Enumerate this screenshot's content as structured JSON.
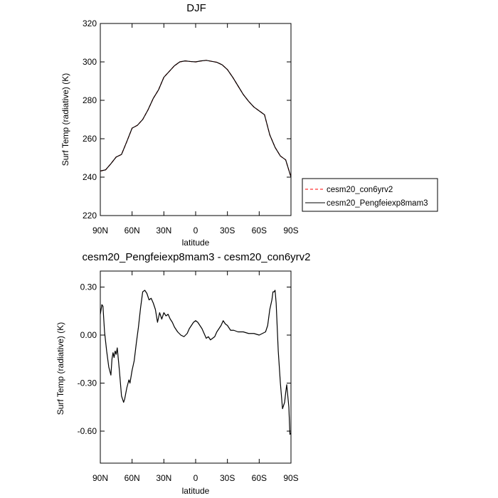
{
  "chart_data": [
    {
      "type": "line",
      "title": "DJF",
      "xlabel": "latitude",
      "ylabel": "Surf Temp (radiative) (K)",
      "x_ticks": [
        {
          "value": 90,
          "label": "90N"
        },
        {
          "value": 60,
          "label": "60N"
        },
        {
          "value": 30,
          "label": "30N"
        },
        {
          "value": 0,
          "label": "0"
        },
        {
          "value": -30,
          "label": "30S"
        },
        {
          "value": -60,
          "label": "60S"
        },
        {
          "value": -90,
          "label": "90S"
        }
      ],
      "xlim": [
        90,
        -90
      ],
      "ylim": [
        220,
        320
      ],
      "y_ticks": [
        220,
        240,
        260,
        280,
        300,
        320
      ],
      "y_tick_labels": [
        "220",
        "240",
        "260",
        "280",
        "300",
        "320"
      ],
      "legend": {
        "placement": "right",
        "entries": [
          {
            "name": "cesm20_con6yrv2",
            "style": "dashed",
            "color": "#ff0000"
          },
          {
            "name": "cesm20_Pengfeiexp8mam3",
            "style": "solid",
            "color": "#000000"
          }
        ]
      },
      "x": [
        90,
        85,
        80,
        75,
        70,
        65,
        60,
        55,
        50,
        45,
        40,
        35,
        30,
        25,
        20,
        15,
        10,
        5,
        0,
        -5,
        -10,
        -15,
        -20,
        -25,
        -30,
        -35,
        -40,
        -45,
        -50,
        -55,
        -60,
        -65,
        -70,
        -75,
        -80,
        -85,
        -90
      ],
      "series": [
        {
          "name": "cesm20_con6yrv2",
          "color": "#ff0000",
          "style": "dashed",
          "values": [
            243.2,
            243.8,
            247.0,
            250.5,
            251.8,
            258.5,
            265.5,
            267.0,
            270.0,
            275.0,
            281.0,
            285.5,
            292.0,
            295.0,
            298.0,
            300.0,
            300.5,
            300.2,
            300.0,
            300.5,
            300.8,
            300.3,
            299.8,
            298.5,
            296.0,
            292.0,
            287.5,
            283.0,
            279.5,
            276.5,
            274.5,
            272.5,
            262.0,
            255.5,
            251.0,
            249.0,
            240.0
          ]
        },
        {
          "name": "cesm20_Pengfeiexp8mam3",
          "color": "#000000",
          "style": "solid",
          "values": [
            243.2,
            243.8,
            247.0,
            250.5,
            251.8,
            258.5,
            265.5,
            267.0,
            270.0,
            275.0,
            281.0,
            285.5,
            292.0,
            295.0,
            298.0,
            300.0,
            300.5,
            300.2,
            300.0,
            300.5,
            300.8,
            300.3,
            299.8,
            298.5,
            296.0,
            292.0,
            287.5,
            283.0,
            279.5,
            276.5,
            274.5,
            272.5,
            262.0,
            255.5,
            251.0,
            249.0,
            240.0
          ]
        }
      ]
    },
    {
      "type": "line",
      "title": "cesm20_Pengfeiexp8mam3 - cesm20_con6yrv2",
      "xlabel": "latitude",
      "ylabel": "Surf Temp (radiative) (K)",
      "x_ticks": [
        {
          "value": 90,
          "label": "90N"
        },
        {
          "value": 60,
          "label": "60N"
        },
        {
          "value": 30,
          "label": "30N"
        },
        {
          "value": 0,
          "label": "0"
        },
        {
          "value": -30,
          "label": "30S"
        },
        {
          "value": -60,
          "label": "60S"
        },
        {
          "value": -90,
          "label": "90S"
        }
      ],
      "xlim": [
        90,
        -90
      ],
      "ylim": [
        -0.8,
        0.4
      ],
      "y_ticks": [
        0.3,
        0.0,
        -0.3,
        -0.6
      ],
      "y_tick_labels": [
        "0.30",
        "0.00",
        "-0.30",
        "-0.60"
      ],
      "x": [
        90,
        88.5,
        87.5,
        86,
        84,
        82,
        80,
        79,
        78,
        77,
        76,
        75,
        74,
        72,
        70,
        68,
        67,
        65,
        63,
        62,
        60,
        58,
        56,
        54,
        52,
        50,
        48,
        46,
        44,
        42,
        40,
        38,
        36,
        34,
        32,
        30,
        28,
        26,
        24,
        22,
        20,
        17,
        14,
        11,
        8,
        6,
        4,
        2,
        0,
        -2,
        -4,
        -6,
        -8,
        -10,
        -12,
        -14,
        -16,
        -18,
        -20,
        -22,
        -24,
        -26,
        -28,
        -30,
        -33,
        -36,
        -40,
        -45,
        -50,
        -55,
        -60,
        -63,
        -66,
        -68,
        -70,
        -72,
        -73,
        -74,
        -75,
        -76,
        -77,
        -78,
        -80,
        -82,
        -84,
        -85,
        -86,
        -88,
        -89,
        -90
      ],
      "series": [
        {
          "name": "cesm20_Pengfeiexp8mam3 - cesm20_con6yrv2",
          "color": "#000000",
          "style": "solid",
          "values": [
            0.13,
            0.19,
            0.18,
            0.02,
            -0.1,
            -0.2,
            -0.25,
            -0.15,
            -0.11,
            -0.14,
            -0.1,
            -0.12,
            -0.08,
            -0.22,
            -0.38,
            -0.42,
            -0.4,
            -0.33,
            -0.28,
            -0.3,
            -0.22,
            -0.16,
            -0.05,
            0.05,
            0.17,
            0.27,
            0.28,
            0.26,
            0.22,
            0.23,
            0.2,
            0.16,
            0.08,
            0.14,
            0.1,
            0.14,
            0.12,
            0.13,
            0.1,
            0.08,
            0.05,
            0.02,
            0.0,
            -0.01,
            0.01,
            0.04,
            0.06,
            0.08,
            0.09,
            0.08,
            0.06,
            0.04,
            0.01,
            -0.02,
            -0.01,
            -0.03,
            -0.02,
            -0.01,
            0.02,
            0.04,
            0.06,
            0.09,
            0.07,
            0.06,
            0.03,
            0.03,
            0.02,
            0.02,
            0.01,
            0.01,
            0.0,
            0.01,
            0.02,
            0.06,
            0.16,
            0.22,
            0.27,
            0.27,
            0.28,
            0.2,
            0.05,
            -0.1,
            -0.3,
            -0.46,
            -0.42,
            -0.36,
            -0.31,
            -0.45,
            -0.62,
            -0.61
          ]
        }
      ]
    }
  ]
}
